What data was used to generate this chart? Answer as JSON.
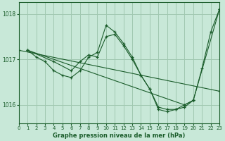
{
  "background_color": "#c8e8d8",
  "plot_bg_color": "#c8e8d8",
  "grid_color": "#a0c8b0",
  "line_color": "#1a5c2a",
  "xlabel": "Graphe pression niveau de la mer (hPa)",
  "xlim": [
    0,
    23
  ],
  "ylim": [
    1015.6,
    1018.25
  ],
  "yticks": [
    1016,
    1017,
    1018
  ],
  "xticks": [
    0,
    1,
    2,
    3,
    4,
    5,
    6,
    7,
    8,
    9,
    10,
    11,
    12,
    13,
    14,
    15,
    16,
    17,
    18,
    19,
    20,
    21,
    22,
    23
  ],
  "series": [
    {
      "x": [
        1,
        2,
        3,
        4,
        5,
        6,
        7,
        8,
        9,
        10,
        11,
        12,
        13,
        14,
        15,
        16,
        17,
        18,
        19,
        20,
        21,
        22,
        23
      ],
      "y": [
        1017.2,
        1017.05,
        1016.95,
        1016.75,
        1016.65,
        1016.6,
        1016.75,
        1017.05,
        1017.15,
        1017.75,
        1017.6,
        1017.35,
        1017.05,
        1016.65,
        1016.35,
        1015.95,
        1015.9,
        1015.9,
        1015.95,
        1016.1,
        1016.8,
        1017.6,
        1018.1
      ]
    },
    {
      "x": [
        0,
        23
      ],
      "y": [
        1017.2,
        1016.3
      ]
    },
    {
      "x": [
        1,
        19,
        20,
        23
      ],
      "y": [
        1017.2,
        1016.0,
        1016.1,
        1018.1
      ]
    },
    {
      "x": [
        1,
        4,
        6,
        7,
        8,
        9,
        10,
        11,
        12,
        13,
        14,
        15,
        16,
        17,
        18,
        19,
        20
      ],
      "y": [
        1017.2,
        1016.95,
        1016.75,
        1016.95,
        1017.1,
        1017.05,
        1017.5,
        1017.55,
        1017.3,
        1017.0,
        1016.65,
        1016.35,
        1015.9,
        1015.85,
        1015.9,
        1016.0,
        1016.1
      ]
    }
  ]
}
